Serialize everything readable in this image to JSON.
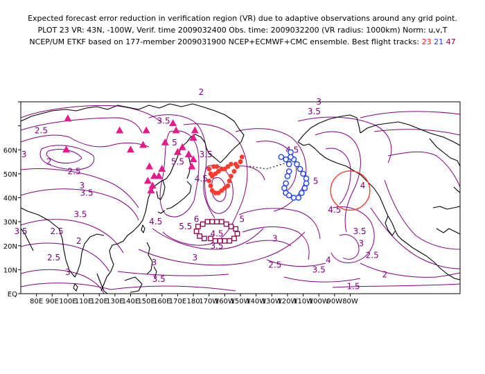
{
  "header": {
    "line1": "Expected forecast error reduction in verification region (VR) due to adaptive observations around any grid point.",
    "line2": "PLOT 23 VR: 43N, -100W, Verif. time 2009032400 Obs. time: 2009032200 (VR radius: 1000km) Norm: u,v,T",
    "line3_prefix": "NCEP/UM ETKF based on 177-member 2009031900 NCEP+ECMWF+CMC ensemble. Best flight tracks:",
    "tracks": [
      "23",
      "21",
      "47"
    ]
  },
  "map": {
    "x_ticks": [
      "80E",
      "90E",
      "100E",
      "110E",
      "120E",
      "130E",
      "140E",
      "150E",
      "160E",
      "170E",
      "180",
      "170W",
      "160W",
      "150W",
      "140W",
      "130W",
      "120W",
      "110W",
      "100W",
      "90W",
      "80W"
    ],
    "y_ticks": [
      "EQ",
      "10N",
      "20N",
      "30N",
      "40N",
      "50N",
      "60N"
    ],
    "colors": {
      "contour": "#800080",
      "track_23": "#ff3b30",
      "track_21": "#2040ff",
      "track_47": "#8b004b",
      "triangle": "#e8198b",
      "vr_circle": "#ff3b30"
    }
  },
  "contour_labels": [
    {
      "text": "3.5",
      "lon": 141,
      "lat": 72
    },
    {
      "text": "2.5",
      "lon": 63,
      "lat": 68
    },
    {
      "text": "3",
      "lon": 52,
      "lat": 58
    },
    {
      "text": "2",
      "lon": 68,
      "lat": 55
    },
    {
      "text": "2.5",
      "lon": 84,
      "lat": 51
    },
    {
      "text": "3",
      "lon": 89,
      "lat": 45
    },
    {
      "text": "3.5",
      "lon": 92,
      "lat": 42
    },
    {
      "text": "5",
      "lon": 148,
      "lat": 63
    },
    {
      "text": "5.5",
      "lon": 150,
      "lat": 55
    },
    {
      "text": "4.5",
      "lon": 165,
      "lat": 48
    },
    {
      "text": "3.5",
      "lon": 168,
      "lat": 58
    },
    {
      "text": "3.5",
      "lon": 88,
      "lat": 33
    },
    {
      "text": "4.5",
      "lon": 136,
      "lat": 30
    },
    {
      "text": "6",
      "lon": 162,
      "lat": 31
    },
    {
      "text": "5.5",
      "lon": 155,
      "lat": 28
    },
    {
      "text": "3.5",
      "lon": 50,
      "lat": 26
    },
    {
      "text": "2.5",
      "lon": 73,
      "lat": 26
    },
    {
      "text": "2",
      "lon": 87,
      "lat": 22
    },
    {
      "text": "2.5",
      "lon": 71,
      "lat": 15
    },
    {
      "text": "3",
      "lon": 80,
      "lat": 9
    },
    {
      "text": "3",
      "lon": 135,
      "lat": 13
    },
    {
      "text": "3",
      "lon": 161,
      "lat": 15
    },
    {
      "text": "3.5",
      "lon": 138,
      "lat": 6
    },
    {
      "text": "4.5",
      "lon": 175,
      "lat": 25
    },
    {
      "text": "5",
      "lon": 191,
      "lat": 31
    },
    {
      "text": "3.5",
      "lon": 175,
      "lat": 20
    },
    {
      "text": "3",
      "lon": 212,
      "lat": 23
    },
    {
      "text": "2.5",
      "lon": 212,
      "lat": 12
    },
    {
      "text": "3.5",
      "lon": 240,
      "lat": 10
    },
    {
      "text": "4",
      "lon": 246,
      "lat": 14
    },
    {
      "text": "4.5",
      "lon": 250,
      "lat": 35
    },
    {
      "text": "4.5",
      "lon": 223,
      "lat": 60
    },
    {
      "text": "5",
      "lon": 238,
      "lat": 47
    },
    {
      "text": "3",
      "lon": 240,
      "lat": 80
    },
    {
      "text": "3.5",
      "lon": 237,
      "lat": 76
    },
    {
      "text": "4",
      "lon": 268,
      "lat": 45
    },
    {
      "text": "3.5",
      "lon": 266,
      "lat": 26
    },
    {
      "text": "3",
      "lon": 267,
      "lat": 21
    },
    {
      "text": "2.5",
      "lon": 274,
      "lat": 16
    },
    {
      "text": "2",
      "lon": 282,
      "lat": 8
    },
    {
      "text": "1.5",
      "lon": 262,
      "lat": 3
    },
    {
      "text": "2",
      "lon": 165,
      "lat": 84
    }
  ],
  "tracks": {
    "t23": [
      [
        170,
        47
      ],
      [
        171,
        45
      ],
      [
        172,
        43
      ],
      [
        174,
        42
      ],
      [
        176,
        42
      ],
      [
        178,
        43
      ],
      [
        180,
        44
      ],
      [
        182,
        45
      ],
      [
        183,
        47
      ],
      [
        184,
        49
      ],
      [
        186,
        51
      ],
      [
        188,
        53
      ],
      [
        190,
        55
      ],
      [
        191,
        57
      ],
      [
        190,
        55
      ],
      [
        187,
        54
      ],
      [
        184,
        54
      ],
      [
        182,
        53
      ],
      [
        180,
        52
      ],
      [
        178,
        52
      ],
      [
        176,
        51
      ],
      [
        174,
        50
      ],
      [
        172,
        49
      ],
      [
        171,
        50
      ],
      [
        170,
        52
      ],
      [
        173,
        53
      ],
      [
        175,
        53
      ]
    ],
    "t21": [
      [
        216,
        57
      ],
      [
        219,
        56
      ],
      [
        221,
        54
      ],
      [
        221,
        51
      ],
      [
        220,
        49
      ],
      [
        219,
        46
      ],
      [
        218,
        44
      ],
      [
        219,
        42
      ],
      [
        221,
        41
      ],
      [
        224,
        40
      ],
      [
        227,
        40
      ],
      [
        229,
        42
      ],
      [
        231,
        44
      ],
      [
        232,
        46
      ],
      [
        232,
        48
      ],
      [
        230,
        50
      ],
      [
        228,
        52
      ],
      [
        226,
        54
      ],
      [
        224,
        56
      ],
      [
        222,
        57
      ],
      [
        222,
        59
      ]
    ],
    "t47": [
      [
        163,
        28
      ],
      [
        166,
        29
      ],
      [
        169,
        30
      ],
      [
        172,
        30
      ],
      [
        175,
        30
      ],
      [
        178,
        30
      ],
      [
        181,
        29
      ],
      [
        184,
        28
      ],
      [
        187,
        27
      ],
      [
        188,
        25
      ],
      [
        186,
        23
      ],
      [
        183,
        22
      ],
      [
        180,
        22
      ],
      [
        177,
        22
      ],
      [
        174,
        22
      ],
      [
        171,
        23
      ],
      [
        167,
        23
      ],
      [
        164,
        24
      ],
      [
        162,
        26
      ]
    ],
    "triangles": [
      [
        80,
        73
      ],
      [
        79,
        60
      ],
      [
        113,
        68
      ],
      [
        120,
        60
      ],
      [
        130,
        68
      ],
      [
        128,
        62
      ],
      [
        132,
        53
      ],
      [
        131,
        47
      ],
      [
        133,
        43
      ],
      [
        134,
        45
      ],
      [
        135,
        49
      ],
      [
        138,
        49
      ],
      [
        140,
        52
      ],
      [
        142,
        63
      ],
      [
        147,
        71
      ],
      [
        149,
        68
      ],
      [
        150,
        59
      ],
      [
        160,
        65
      ],
      [
        161,
        68
      ],
      [
        159,
        53
      ],
      [
        160,
        56
      ],
      [
        153,
        61
      ],
      [
        157,
        58
      ]
    ]
  },
  "vr_circle": {
    "lon": 260,
    "lat": 43,
    "radius_deg": 12.5
  }
}
